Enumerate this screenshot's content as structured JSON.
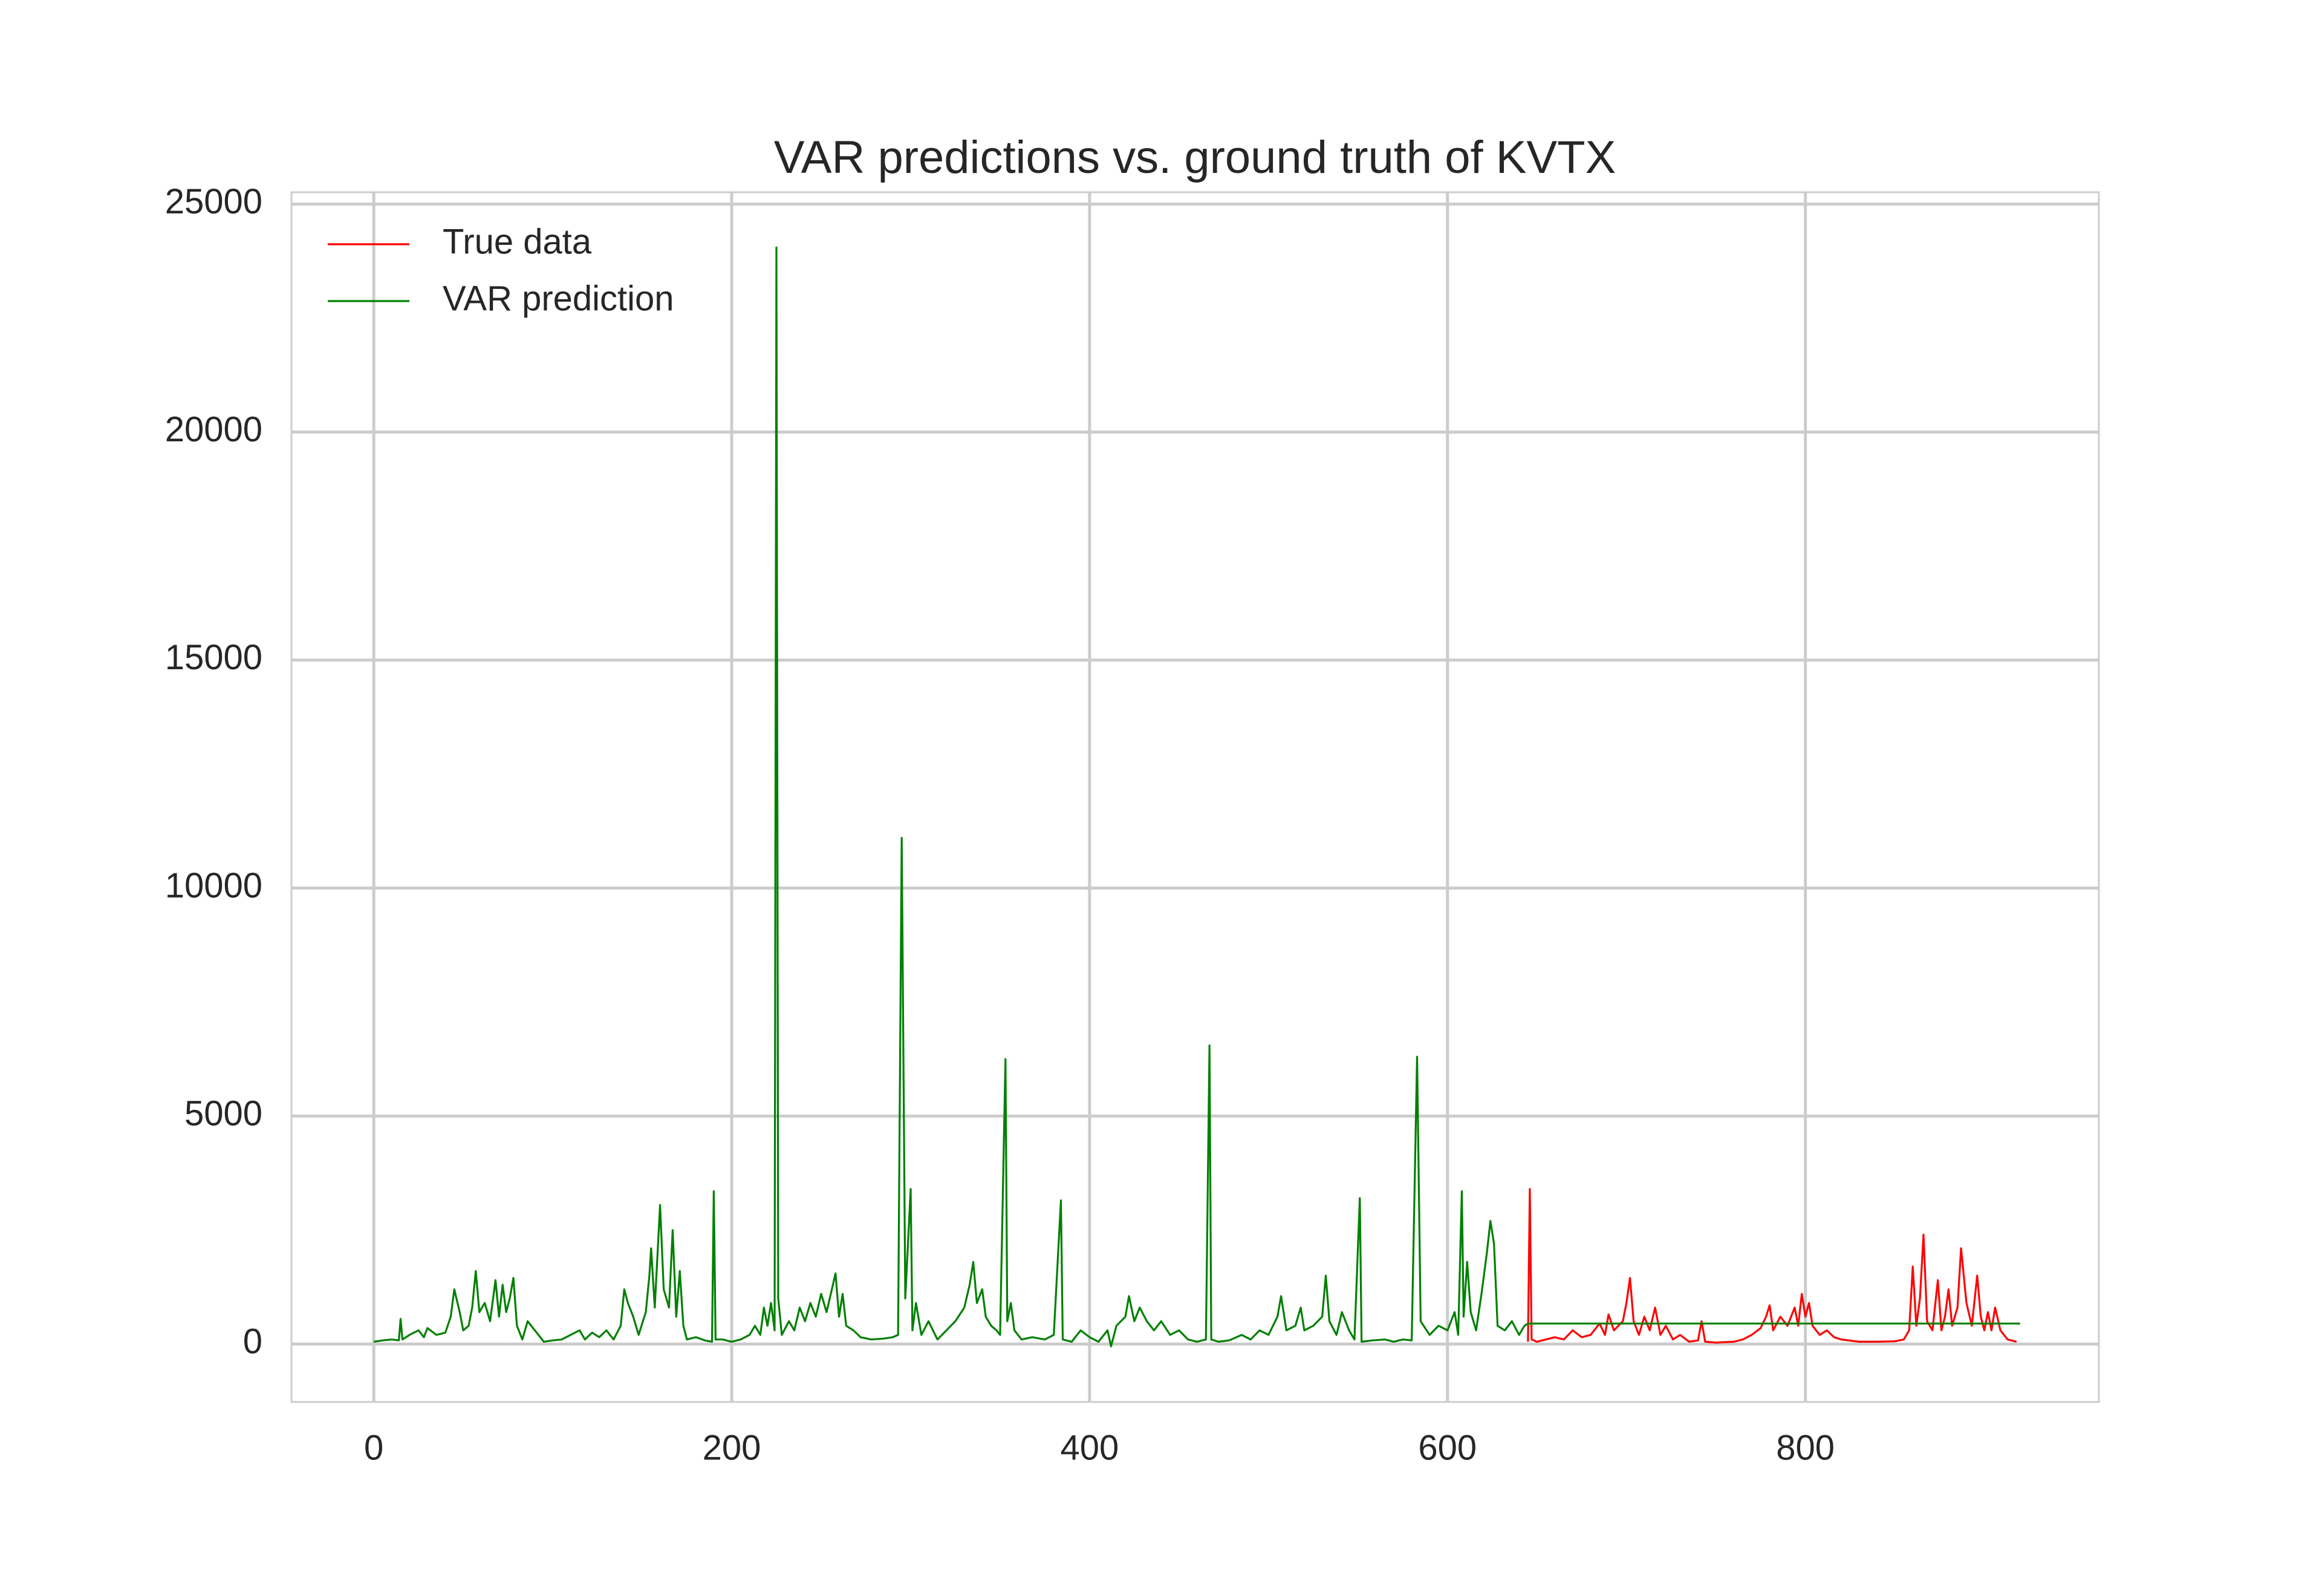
{
  "chart_data": {
    "type": "line",
    "title": "VAR predictions vs. ground truth of KVTX",
    "xlim": [
      -46,
      964
    ],
    "xticks": [
      0,
      200,
      400,
      600,
      800
    ],
    "ylim": [
      -1270,
      25260
    ],
    "yticks": [
      0,
      5000,
      10000,
      15000,
      20000,
      25000
    ],
    "grid": true,
    "legend": "upper left",
    "series": [
      {
        "name": "True data",
        "color": "#ff0000",
        "x": [
          645,
          646,
          647,
          650,
          655,
          660,
          665,
          670,
          675,
          680,
          685,
          688,
          690,
          693,
          698,
          700,
          702,
          704,
          707,
          710,
          713,
          716,
          719,
          722,
          726,
          730,
          735,
          740,
          742,
          744,
          750,
          760,
          765,
          770,
          775,
          778,
          780,
          782,
          786,
          790,
          794,
          796,
          798,
          800,
          802,
          804,
          808,
          812,
          816,
          820,
          830,
          840,
          850,
          855,
          858,
          860,
          862,
          864,
          866,
          868,
          871,
          874,
          876,
          878,
          880,
          882,
          885,
          887,
          890,
          893,
          896,
          898,
          900,
          902,
          904,
          906,
          909,
          913,
          918
        ],
        "values": [
          50,
          3400,
          100,
          50,
          100,
          150,
          100,
          300,
          150,
          200,
          450,
          200,
          650,
          300,
          500,
          900,
          1450,
          500,
          200,
          600,
          300,
          800,
          200,
          400,
          100,
          200,
          50,
          80,
          500,
          50,
          30,
          50,
          100,
          200,
          350,
          600,
          850,
          300,
          600,
          400,
          800,
          400,
          1100,
          600,
          900,
          400,
          200,
          300,
          150,
          100,
          50,
          50,
          60,
          100,
          300,
          1700,
          400,
          1000,
          2400,
          500,
          300,
          1400,
          300,
          600,
          1200,
          400,
          800,
          2100,
          900,
          400,
          1500,
          600,
          300,
          700,
          300,
          800,
          300,
          100,
          50
        ]
      },
      {
        "name": "VAR prediction",
        "color": "#008000",
        "x": [
          0,
          5,
          10,
          14,
          15,
          16,
          20,
          25,
          28,
          30,
          35,
          40,
          43,
          45,
          48,
          50,
          53,
          55,
          57,
          59,
          62,
          65,
          68,
          70,
          72,
          74,
          76,
          78,
          80,
          83,
          86,
          90,
          95,
          100,
          105,
          110,
          115,
          118,
          122,
          126,
          130,
          134,
          138,
          140,
          142,
          145,
          148,
          152,
          154,
          155,
          157,
          160,
          162,
          165,
          167,
          169,
          171,
          173,
          175,
          180,
          185,
          189,
          190,
          191,
          195,
          200,
          205,
          210,
          213,
          216,
          218,
          220,
          222,
          224,
          225,
          226,
          228,
          232,
          235,
          238,
          241,
          244,
          247,
          250,
          253,
          256,
          258,
          260,
          262,
          264,
          268,
          272,
          278,
          285,
          290,
          293,
          295,
          297,
          300,
          301,
          303,
          306,
          310,
          315,
          320,
          325,
          330,
          333,
          335,
          337,
          340,
          342,
          345,
          348,
          350,
          353,
          354,
          356,
          358,
          362,
          368,
          375,
          380,
          384,
          385,
          390,
          395,
          400,
          405,
          410,
          412,
          415,
          420,
          422,
          425,
          428,
          432,
          436,
          440,
          445,
          450,
          455,
          460,
          465,
          467,
          468,
          472,
          478,
          485,
          490,
          495,
          500,
          505,
          507,
          510,
          515,
          518,
          520,
          525,
          530,
          532,
          534,
          538,
          541,
          545,
          548,
          551,
          552,
          558,
          565,
          570,
          575,
          580,
          583,
          585,
          590,
          595,
          600,
          604,
          606,
          608,
          609,
          611,
          613,
          616,
          619,
          622,
          624,
          626,
          628,
          632,
          636,
          640,
          643,
          645,
          920
        ],
        "values": [
          50,
          80,
          100,
          80,
          550,
          100,
          200,
          300,
          150,
          350,
          200,
          250,
          600,
          1200,
          700,
          300,
          400,
          800,
          1600,
          700,
          900,
          500,
          1400,
          600,
          1300,
          700,
          1000,
          1450,
          400,
          100,
          500,
          300,
          50,
          80,
          100,
          200,
          300,
          100,
          250,
          150,
          300,
          100,
          400,
          1200,
          900,
          600,
          200,
          700,
          1500,
          2100,
          800,
          3050,
          1200,
          800,
          2500,
          600,
          1600,
          400,
          100,
          150,
          80,
          50,
          3350,
          100,
          100,
          50,
          100,
          200,
          400,
          200,
          800,
          400,
          900,
          300,
          24050,
          1000,
          200,
          500,
          300,
          800,
          500,
          900,
          600,
          1100,
          700,
          1200,
          1550,
          600,
          1100,
          400,
          300,
          150,
          100,
          120,
          150,
          200,
          11100,
          1000,
          3400,
          300,
          900,
          200,
          500,
          100,
          300,
          500,
          800,
          1300,
          1800,
          900,
          1200,
          600,
          400,
          300,
          200,
          6250,
          500,
          900,
          300,
          100,
          150,
          100,
          200,
          3150,
          100,
          50,
          300,
          150,
          50,
          300,
          -50,
          400,
          600,
          1050,
          500,
          800,
          500,
          300,
          500,
          200,
          300,
          100,
          50,
          100,
          6550,
          100,
          50,
          80,
          200,
          100,
          300,
          200,
          600,
          1050,
          300,
          400,
          800,
          300,
          400,
          600,
          1500,
          500,
          200,
          700,
          300,
          100,
          3200,
          50,
          80,
          100,
          50,
          100,
          80,
          6300,
          500,
          200,
          400,
          300,
          700,
          200,
          3350,
          600,
          1800,
          700,
          300,
          1100,
          2000,
          2700,
          2200,
          400,
          300,
          500,
          200,
          400,
          450,
          450
        ]
      }
    ]
  }
}
